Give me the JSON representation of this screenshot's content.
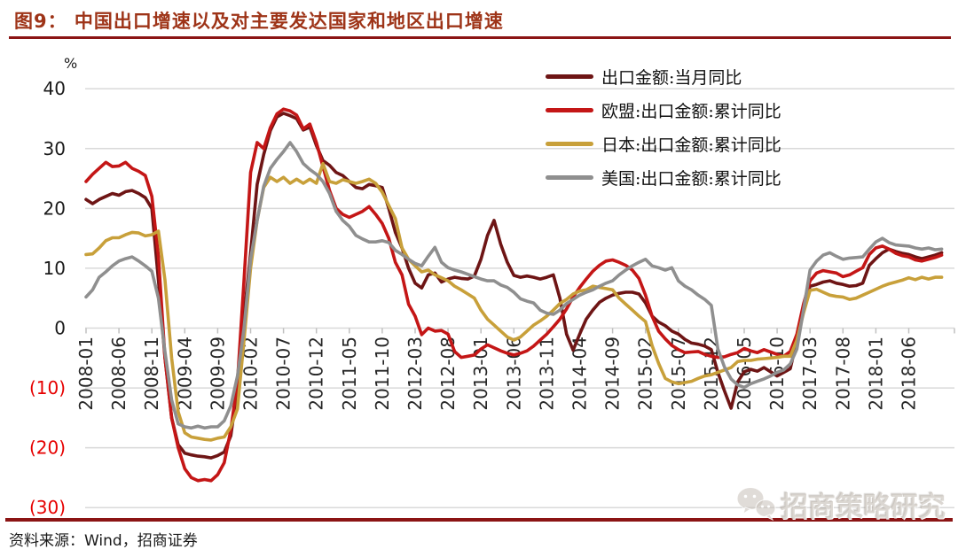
{
  "figure": {
    "title": "图9：  中国出口增速以及对主要发达国家和地区出口增速",
    "percent": "%",
    "source": "资料来源：Wind，招商证券",
    "watermark": "招商策略研究"
  },
  "colors": {
    "title": "#9e3418",
    "rule": "#8b1414",
    "grid": "#d9d9d9",
    "axis_tick": "#c0c0c0",
    "y_label_positive": "#1a1a1a",
    "y_label_negative": "#e60000",
    "x_label": "#262626"
  },
  "chart_data": {
    "type": "line",
    "title": "中国出口增速以及对主要发达国家和地区出口增速",
    "xlabel": "",
    "ylabel": "%",
    "ylim": [
      -30,
      42
    ],
    "grid": true,
    "legend_position": "top-right",
    "x_start": "2008-01",
    "x_end": "2018-11",
    "x_tick_every": 5,
    "x_tick_labels": [
      "2008-01",
      "2008-06",
      "2008-11",
      "2009-04",
      "2009-09",
      "2010-02",
      "2010-07",
      "2010-12",
      "2011-05",
      "2011-10",
      "2012-03",
      "2012-08",
      "2013-01",
      "2013-06",
      "2013-11",
      "2014-04",
      "2014-09",
      "2015-02",
      "2015-07",
      "2015-12",
      "2016-05",
      "2016-10",
      "2017-03",
      "2017-08",
      "2018-01",
      "2018-06"
    ],
    "y_ticks": [
      {
        "label": "40",
        "value": 40,
        "negative": false
      },
      {
        "label": "30",
        "value": 30,
        "negative": false
      },
      {
        "label": "20",
        "value": 20,
        "negative": false
      },
      {
        "label": "10",
        "value": 10,
        "negative": false
      },
      {
        "label": "0",
        "value": 0,
        "negative": false
      },
      {
        "label": "(10)",
        "value": -10,
        "negative": true
      },
      {
        "label": "(20)",
        "value": -20,
        "negative": true
      },
      {
        "label": "(30)",
        "value": -30,
        "negative": true
      }
    ],
    "series": [
      {
        "name": "出口金额:当月同比",
        "color": "#6e1515",
        "values": [
          21.5,
          20.8,
          21.5,
          22,
          22.5,
          22.2,
          22.8,
          23,
          22.5,
          21.8,
          20,
          8,
          -5,
          -15,
          -19.5,
          -20.9,
          -21.2,
          -21.4,
          -21.5,
          -21.7,
          -21.3,
          -20.7,
          -18,
          -10,
          2,
          12.5,
          24,
          29,
          33,
          35.3,
          35.9,
          35.5,
          35,
          33.1,
          33.6,
          30.5,
          28,
          27.2,
          26,
          25.5,
          24.5,
          23.5,
          23.3,
          24,
          23.8,
          23.5,
          20,
          16,
          13.4,
          10,
          7.5,
          6.7,
          8.9,
          9.2,
          7.7,
          8.2,
          8.5,
          8.3,
          8.2,
          8.7,
          11.5,
          15.5,
          18,
          14,
          11,
          8.8,
          8.5,
          8.7,
          8.5,
          8.2,
          8.5,
          8.9,
          5,
          -1,
          -3.7,
          -1,
          1.5,
          3,
          4.3,
          5,
          5.5,
          5.8,
          6,
          6,
          5.7,
          4.2,
          2,
          1,
          0.4,
          -0.5,
          -1,
          -1.9,
          -2.5,
          -2.7,
          -3,
          -3.6,
          -7.4,
          -10.5,
          -13.4,
          -9,
          -7.3,
          -6.9,
          -7.2,
          -6.6,
          -7.3,
          -8,
          -7.4,
          -6.8,
          -2,
          3,
          7,
          7.3,
          7.7,
          7.9,
          7.5,
          7.3,
          7,
          7.1,
          7.5,
          10.5,
          11.6,
          12.6,
          13.2,
          12.8,
          12.5,
          12.3,
          11.9,
          11.6,
          11.9,
          12.2,
          12.6
        ]
      },
      {
        "name": "欧盟:出口金额:累计同比",
        "color": "#c41616",
        "values": [
          24.5,
          25.7,
          26.7,
          27.7,
          27,
          27.1,
          27.7,
          26.7,
          26.2,
          25.5,
          22,
          12,
          -5,
          -15,
          -20,
          -23.5,
          -25,
          -25.5,
          -25.3,
          -25.5,
          -24.5,
          -22.5,
          -17,
          -9,
          8,
          26,
          31,
          30,
          33.5,
          35.8,
          36.6,
          36.3,
          35.6,
          33.3,
          34.1,
          31,
          27,
          23,
          20,
          19,
          18.5,
          19,
          19.5,
          20.3,
          19,
          17.5,
          15,
          11,
          8.9,
          4,
          2,
          -1.1,
          0,
          -0.5,
          -0.4,
          -1,
          -3.9,
          -4.9,
          -4.7,
          -4.5,
          -3.5,
          -2.8,
          -3.3,
          -3.8,
          -4.2,
          -4.5,
          -4.2,
          -3.8,
          -3,
          -2,
          -1,
          0.2,
          1.5,
          3.2,
          5.2,
          6.8,
          8.2,
          9.5,
          10.5,
          11.2,
          11.4,
          11,
          10.5,
          9.7,
          8.3,
          5.5,
          2,
          -0.5,
          -1.8,
          -2.9,
          -3.6,
          -4.1,
          -4,
          -3.9,
          -4.4,
          -4.7,
          -4.9,
          -4.8,
          -4.4,
          -4.1,
          -3.4,
          -3.8,
          -4.1,
          -3.6,
          -4,
          -4.4,
          -4.7,
          -3.9,
          -1,
          4,
          7.9,
          9.2,
          9.6,
          9.4,
          9.2,
          8.6,
          8.9,
          9.5,
          10.1,
          12.3,
          13.4,
          13.7,
          13.2,
          12.5,
          12.1,
          11.9,
          11.4,
          11.2,
          11.5,
          11.8,
          12.2
        ]
      },
      {
        "name": "日本:出口金额:累计同比",
        "color": "#c8a03a",
        "values": [
          12.3,
          12.4,
          13.4,
          14.6,
          15.1,
          15.1,
          15.6,
          16,
          15.9,
          15.4,
          15.6,
          16.2,
          8,
          -5,
          -14,
          -17.5,
          -18.2,
          -18.4,
          -18.6,
          -18.7,
          -18.4,
          -18.2,
          -16.5,
          -13.5,
          -2,
          10,
          18,
          23.5,
          25.2,
          24.5,
          25.2,
          24.2,
          24.9,
          24.2,
          24.9,
          24.2,
          27.5,
          24.5,
          24.2,
          24.8,
          24.5,
          24.2,
          24.5,
          24.9,
          24.2,
          22.7,
          20.5,
          18.3,
          13.4,
          11.5,
          10.4,
          9.4,
          9.7,
          8.9,
          8.4,
          7.9,
          7,
          6.4,
          5.7,
          5,
          3,
          1.5,
          0.5,
          -0.5,
          -1.5,
          -2,
          -1.5,
          -0.5,
          0.5,
          1.2,
          2,
          3,
          4.1,
          4.8,
          5.7,
          6.2,
          6.4,
          7,
          6.8,
          6.6,
          6.4,
          5,
          4,
          3,
          2,
          1.1,
          -2.9,
          -5.9,
          -8.4,
          -9,
          -9.3,
          -9.1,
          -8.9,
          -8.4,
          -8,
          -7.8,
          -7.4,
          -7,
          -6.6,
          -5.6,
          -5.4,
          -5.4,
          -5.2,
          -5.1,
          -5,
          -4.9,
          -4.7,
          -4.7,
          -2,
          2.5,
          6.3,
          6.5,
          6,
          5.5,
          5.3,
          5.2,
          4.8,
          5,
          5.5,
          6,
          6.5,
          7,
          7.4,
          7.7,
          8,
          8.4,
          8.1,
          8.5,
          8.2,
          8.5,
          8.5
        ]
      },
      {
        "name": "美国:出口金额:累计同比",
        "color": "#8f8f8f",
        "values": [
          5.2,
          6.4,
          8.5,
          9.4,
          10.4,
          11.2,
          11.6,
          11.9,
          11.2,
          10.4,
          9.5,
          5,
          -4,
          -12,
          -16,
          -16.5,
          -16.7,
          -16.4,
          -16.7,
          -16.5,
          -16.5,
          -15.5,
          -13,
          -8,
          0,
          11.5,
          18,
          23.7,
          26.7,
          28.2,
          29.5,
          31,
          29.5,
          27.5,
          26.5,
          25.7,
          24.5,
          22.5,
          19.5,
          18,
          17,
          15.5,
          14.9,
          14.4,
          14.4,
          14.6,
          14.3,
          13,
          12.3,
          11.5,
          10.8,
          10.4,
          12,
          13.5,
          11,
          10.1,
          9.7,
          9.4,
          9,
          8.6,
          8.2,
          7.9,
          7.9,
          7.2,
          6.8,
          6,
          4.9,
          4.5,
          4.2,
          3,
          2.5,
          2.3,
          3,
          4.1,
          4.8,
          5.5,
          6,
          6.4,
          7,
          7.5,
          7.9,
          8.9,
          9.7,
          10.4,
          11,
          11.5,
          10.4,
          10.1,
          9.7,
          10.1,
          7.9,
          7,
          6.4,
          5.5,
          4.8,
          3.8,
          -3.5,
          -6.5,
          -8.5,
          -9.5,
          -9.9,
          -9.3,
          -8.9,
          -8.5,
          -8,
          -7.4,
          -7,
          -6,
          -3.5,
          3,
          9.7,
          11.2,
          12.2,
          12.6,
          12,
          11.5,
          11.7,
          11.8,
          11.9,
          13.2,
          14.4,
          15,
          14.3,
          13.9,
          13.8,
          13.7,
          13.4,
          13.2,
          13.4,
          13.1,
          13.2
        ]
      }
    ]
  }
}
